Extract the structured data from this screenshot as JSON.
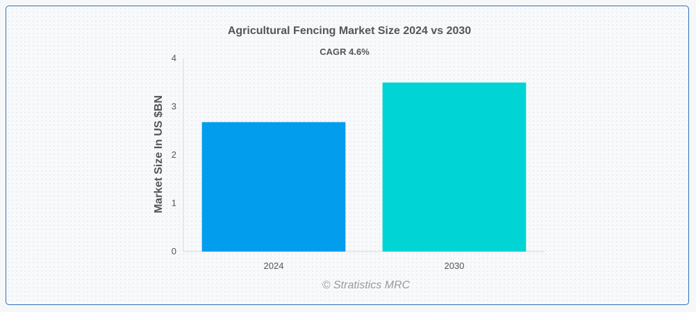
{
  "chart_data": {
    "type": "bar",
    "title": "Agricultural Fencing Market Size 2024 vs 2030",
    "subtitle": "CAGR 4.6%",
    "ylabel": "Market Size In US $BN",
    "xlabel": "",
    "categories": [
      "2024",
      "2030"
    ],
    "values": [
      2.68,
      3.5
    ],
    "colors": [
      "#039ded",
      "#00d4d4"
    ],
    "ylim": [
      0,
      4
    ],
    "yticks": [
      "0",
      "1",
      "2",
      "3",
      "4"
    ],
    "grid": false,
    "legend": "none"
  },
  "watermark": "© Stratistics MRC"
}
